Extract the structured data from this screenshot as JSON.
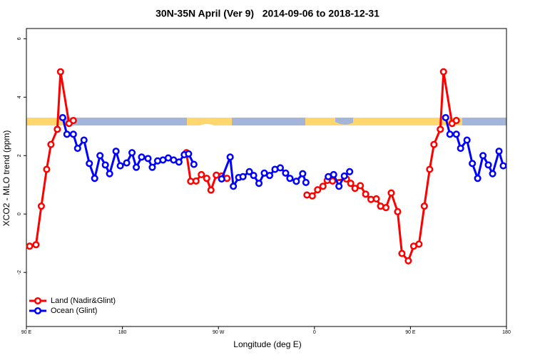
{
  "chart_data": {
    "type": "line",
    "title": "30N-35N April (Ver 9)   2014-09-06 to 2018-12-31",
    "x_label": "Longitude (deg E)",
    "y_label": "XCO2 - MLO trend (ppm)",
    "xlim": [
      90,
      540
    ],
    "xticks": [
      {
        "value": 90,
        "label": "90 E"
      },
      180,
      {
        "value": 270,
        "label": "90 W"
      },
      {
        "value": 360,
        "label": "0"
      },
      {
        "value": 450,
        "label": "90 E"
      },
      {
        "value": 540,
        "label": "180"
      }
    ],
    "ylim": [
      -3.85,
      6.35
    ],
    "yticks": [
      -2,
      0,
      2,
      4,
      6
    ],
    "legend": "bottom-left",
    "series": [
      {
        "name": "Land (Nadir&Glint)",
        "color": "#ff0000",
        "x": [
          93,
          99,
          104,
          109,
          113,
          119,
          122,
          130,
          134,
          null,
          240,
          244,
          249,
          254,
          259,
          263,
          268,
          273,
          278,
          null,
          353,
          358,
          363,
          368,
          372,
          377,
          390,
          394,
          398,
          403,
          408,
          413,
          418,
          422,
          427,
          432,
          438,
          442,
          448,
          453,
          458,
          463,
          468,
          472,
          478,
          481,
          489,
          493
        ],
        "values": [
          -1.1,
          -1.05,
          0.27,
          1.53,
          2.38,
          2.9,
          4.87,
          3.1,
          3.2,
          null,
          2.1,
          1.12,
          1.13,
          1.35,
          1.22,
          0.82,
          1.33,
          1.3,
          1.22,
          null,
          0.65,
          0.62,
          0.83,
          0.95,
          1.15,
          1.13,
          1.2,
          1.05,
          0.88,
          0.97,
          0.68,
          0.5,
          0.52,
          0.27,
          0.22,
          0.72,
          0.08,
          -1.35,
          -1.6,
          -1.1,
          -1.03,
          0.27,
          1.53,
          2.38,
          2.9,
          4.87,
          3.1,
          3.2
        ]
      },
      {
        "name": "Ocean (Glint)",
        "color": "#0000ff",
        "x": [
          124,
          128,
          134,
          138,
          144,
          149,
          154,
          159,
          164,
          168,
          174,
          178,
          184,
          189,
          193,
          198,
          204,
          208,
          213,
          218,
          223,
          228,
          233,
          238,
          242,
          247,
          null,
          273,
          281,
          284,
          289,
          293,
          299,
          303,
          308,
          313,
          318,
          323,
          328,
          333,
          337,
          343,
          349,
          352,
          null,
          373,
          378,
          383,
          388,
          393,
          null,
          483,
          487,
          493,
          497,
          503,
          508,
          513,
          518,
          523,
          527,
          533,
          537
        ],
        "values": [
          3.3,
          2.73,
          2.73,
          2.25,
          2.53,
          1.73,
          1.22,
          2.0,
          1.68,
          1.38,
          2.15,
          1.65,
          1.75,
          2.1,
          1.6,
          1.95,
          1.9,
          1.6,
          1.82,
          1.85,
          1.92,
          1.85,
          1.78,
          2.03,
          2.06,
          1.7,
          null,
          1.2,
          1.95,
          0.95,
          1.25,
          1.28,
          1.45,
          1.32,
          1.05,
          1.4,
          1.32,
          1.53,
          1.58,
          1.4,
          1.22,
          1.12,
          1.38,
          1.08,
          null,
          1.28,
          1.35,
          0.95,
          1.3,
          1.45,
          null,
          3.3,
          2.73,
          2.73,
          2.25,
          2.53,
          1.73,
          1.22,
          2.0,
          1.68,
          1.38,
          2.15,
          1.65
        ]
      }
    ]
  }
}
